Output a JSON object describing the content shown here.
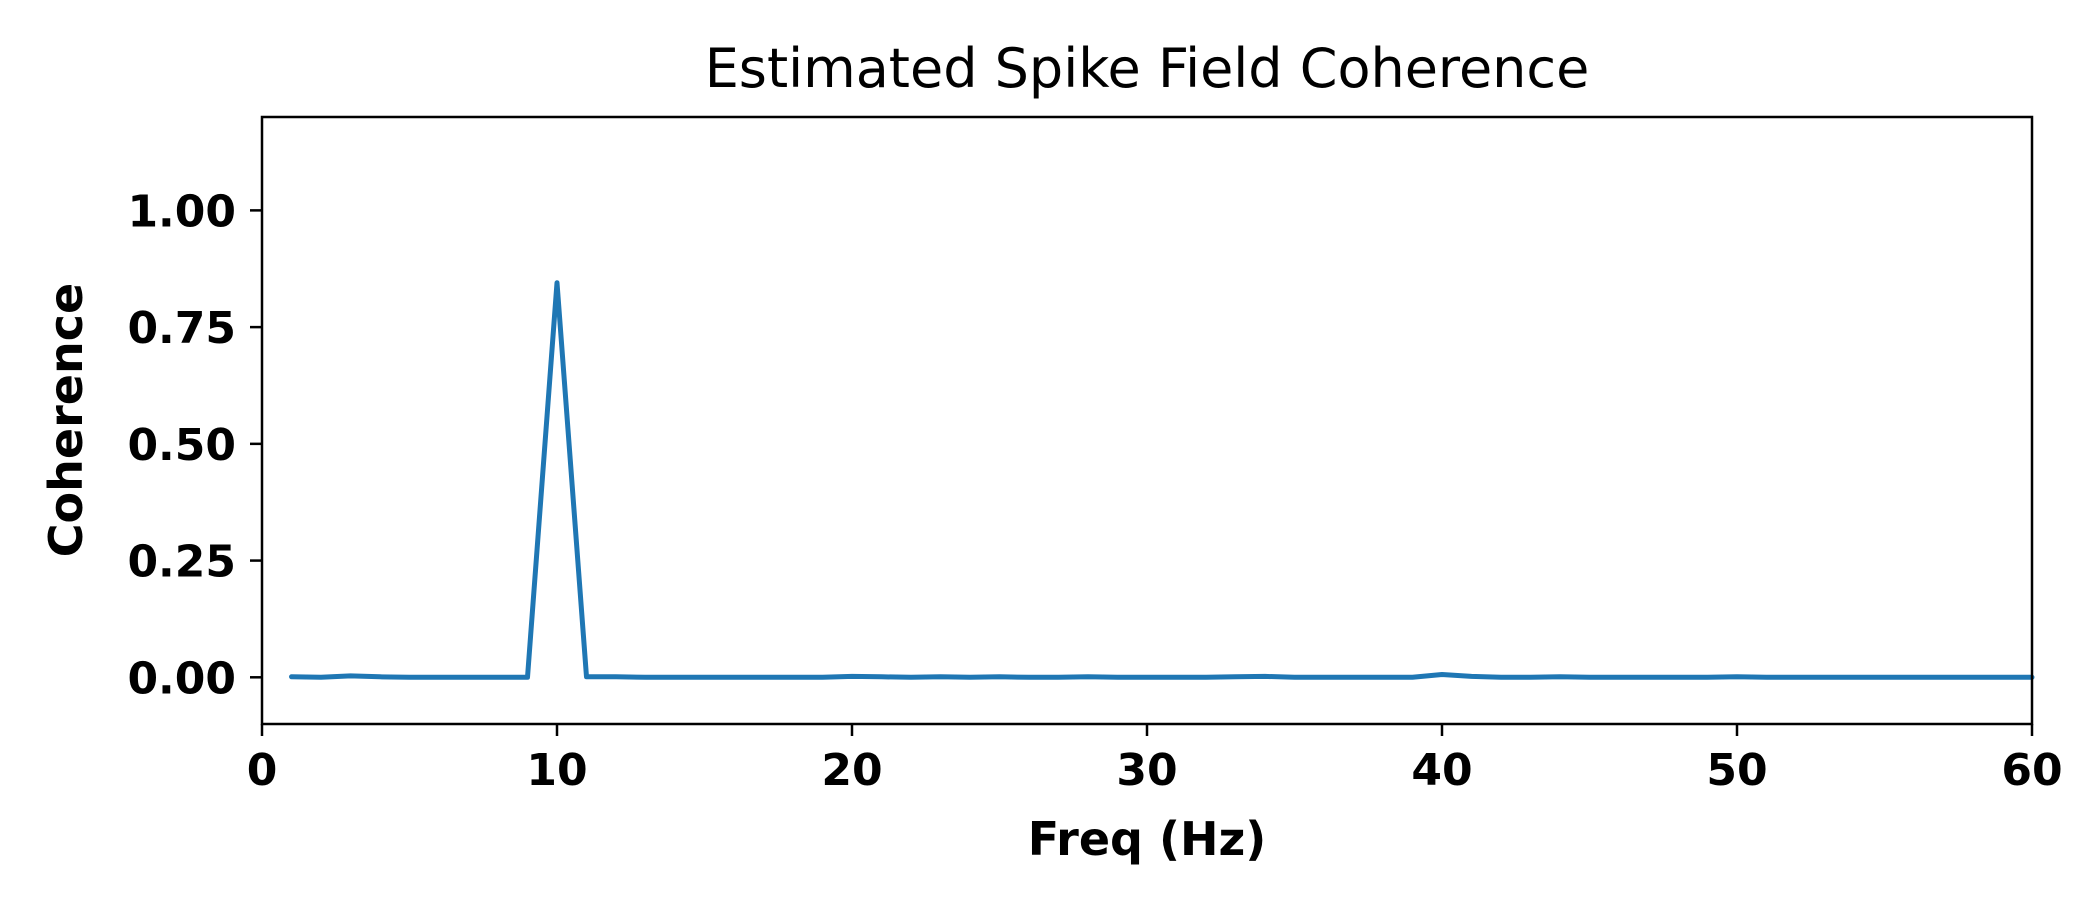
{
  "chart_data": {
    "type": "line",
    "title": "Estimated Spike Field Coherence",
    "xlabel": "Freq (Hz)",
    "ylabel": "Coherence",
    "xlim": [
      0,
      60
    ],
    "ylim": [
      -0.1,
      1.2
    ],
    "xticks": [
      0,
      10,
      20,
      30,
      40,
      50,
      60
    ],
    "xtick_labels": [
      "0",
      "10",
      "20",
      "30",
      "40",
      "50",
      "60"
    ],
    "yticks": [
      0.0,
      0.25,
      0.5,
      0.75,
      1.0
    ],
    "ytick_labels": [
      "0.00",
      "0.25",
      "0.50",
      "0.75",
      "1.00"
    ],
    "grid": false,
    "series": [
      {
        "color": "#1f77b4",
        "x": [
          1,
          2,
          3,
          4,
          5,
          6,
          7,
          8,
          9,
          10,
          11,
          12,
          13,
          14,
          15,
          16,
          17,
          18,
          19,
          20,
          21,
          22,
          23,
          24,
          25,
          26,
          27,
          28,
          29,
          30,
          31,
          32,
          33,
          34,
          35,
          36,
          37,
          38,
          39,
          40,
          41,
          42,
          43,
          44,
          45,
          46,
          47,
          48,
          49,
          50,
          51,
          52,
          53,
          54,
          55,
          56,
          57,
          58,
          59,
          60
        ],
        "y": [
          0.001,
          0.0,
          0.003,
          0.001,
          0.0,
          0.0,
          0.0,
          0.0,
          0.0,
          0.845,
          0.001,
          0.001,
          0.0,
          0.0,
          0.0,
          0.0,
          0.0,
          0.0,
          0.0,
          0.002,
          0.001,
          0.0,
          0.001,
          0.0,
          0.001,
          0.0,
          0.0,
          0.001,
          0.0,
          0.0,
          0.0,
          0.0,
          0.001,
          0.002,
          0.0,
          0.0,
          0.0,
          0.0,
          0.0,
          0.006,
          0.002,
          0.0,
          0.0,
          0.001,
          0.0,
          0.0,
          0.0,
          0.0,
          0.0,
          0.001,
          0.0,
          0.0,
          0.0,
          0.0,
          0.0,
          0.0,
          0.0,
          0.0,
          0.0,
          0.0
        ]
      }
    ]
  }
}
